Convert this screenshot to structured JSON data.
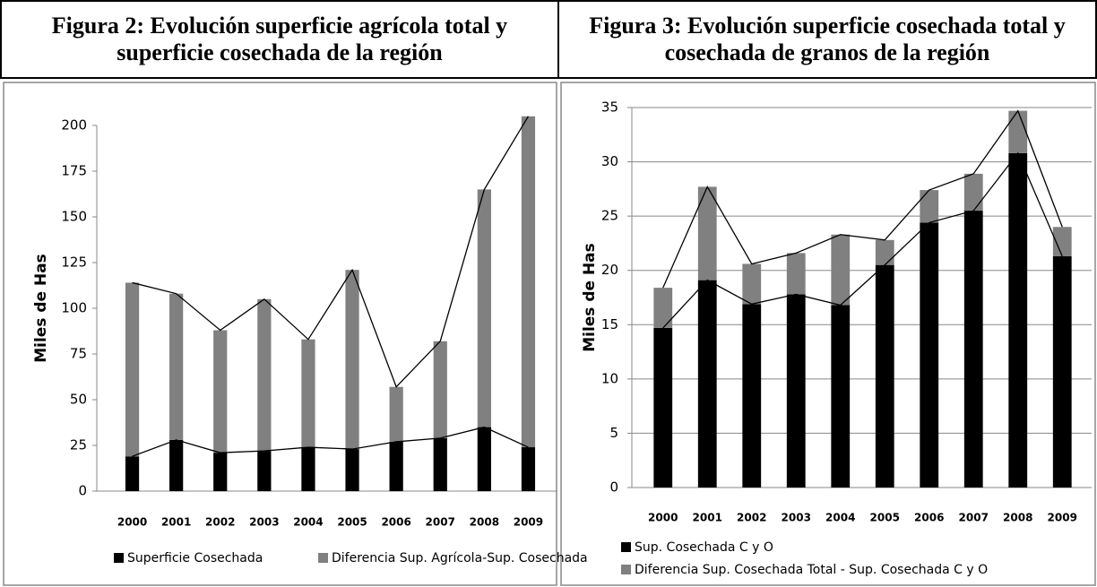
{
  "chart_data": [
    {
      "type": "bar",
      "stacked": true,
      "series_lines": true,
      "grid": false,
      "title": "Figura 2: Evolución superficie agrícola total y superficie cosechada de la región",
      "y_label": "Miles de Has",
      "categories": [
        "2000",
        "2001",
        "2002",
        "2003",
        "2004",
        "2005",
        "2006",
        "2007",
        "2008",
        "2009"
      ],
      "series": [
        {
          "name": "Superficie Cosechada",
          "color": "#000000",
          "values": [
            19,
            28,
            21,
            22,
            24,
            23,
            27,
            29,
            35,
            24
          ]
        },
        {
          "name": "Diferencia Sup. Agrícola-Sup. Cosechada",
          "color": "#808080",
          "values": [
            95,
            80,
            67,
            83,
            59,
            98,
            30,
            53,
            130,
            181
          ]
        }
      ],
      "ylim": [
        0,
        200
      ],
      "yticks": [
        0,
        25,
        50,
        75,
        100,
        125,
        150,
        175,
        200
      ],
      "legend": "bottom"
    },
    {
      "type": "bar",
      "stacked": true,
      "series_lines": true,
      "grid": true,
      "title": "Figura 3: Evolución superficie cosechada total y cosechada de granos de la región",
      "y_label": "Miles de Has",
      "categories": [
        "2000",
        "2001",
        "2002",
        "2003",
        "2004",
        "2005",
        "2006",
        "2007",
        "2008",
        "2009"
      ],
      "series": [
        {
          "name": "Sup. Cosechada C y O",
          "color": "#000000",
          "values": [
            14.7,
            19.1,
            16.9,
            17.8,
            16.8,
            20.5,
            24.4,
            25.5,
            30.8,
            21.3
          ]
        },
        {
          "name": "Diferencia Sup. Cosechada Total - Sup. Cosechada C y O",
          "color": "#808080",
          "values": [
            3.7,
            8.6,
            3.7,
            3.8,
            6.5,
            2.3,
            3.0,
            3.4,
            3.9,
            2.7
          ]
        }
      ],
      "ylim": [
        0,
        35
      ],
      "yticks": [
        0,
        5,
        10,
        15,
        20,
        25,
        30,
        35
      ],
      "legend": "bottom"
    }
  ]
}
